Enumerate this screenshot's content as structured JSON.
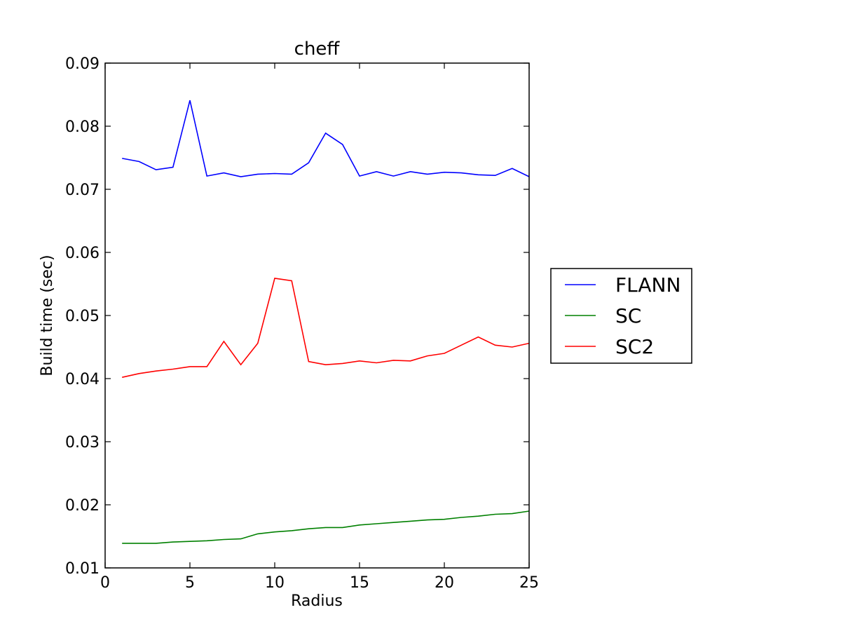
{
  "chart_data": {
    "type": "line",
    "title": "cheff",
    "xlabel": "Radius",
    "ylabel": "Build time (sec)",
    "xlim": [
      0,
      25
    ],
    "ylim": [
      0.01,
      0.09
    ],
    "xticks": [
      0,
      5,
      10,
      15,
      20,
      25
    ],
    "yticks": [
      0.01,
      0.02,
      0.03,
      0.04,
      0.05,
      0.06,
      0.07,
      0.08,
      0.09
    ],
    "xtick_labels": [
      "0",
      "5",
      "10",
      "15",
      "20",
      "25"
    ],
    "ytick_labels": [
      "0.01",
      "0.02",
      "0.03",
      "0.04",
      "0.05",
      "0.06",
      "0.07",
      "0.08",
      "0.09"
    ],
    "grid": false,
    "legend_position": "outside-right",
    "x": [
      1,
      2,
      3,
      4,
      5,
      6,
      7,
      8,
      9,
      10,
      11,
      12,
      13,
      14,
      15,
      16,
      17,
      18,
      19,
      20,
      21,
      22,
      23,
      24,
      25
    ],
    "series": [
      {
        "name": "FLANN",
        "color": "#0000ff",
        "values": [
          0.0749,
          0.0744,
          0.0731,
          0.0735,
          0.0841,
          0.0721,
          0.0726,
          0.072,
          0.0724,
          0.0725,
          0.0724,
          0.0742,
          0.0789,
          0.0771,
          0.0721,
          0.0728,
          0.0721,
          0.0728,
          0.0724,
          0.0727,
          0.0726,
          0.0723,
          0.0722,
          0.0733,
          0.072
        ]
      },
      {
        "name": "SC",
        "color": "#008000",
        "values": [
          0.0139,
          0.0139,
          0.0139,
          0.0141,
          0.0142,
          0.0143,
          0.0145,
          0.0146,
          0.0154,
          0.0157,
          0.0159,
          0.0162,
          0.0164,
          0.0164,
          0.0168,
          0.017,
          0.0172,
          0.0174,
          0.0176,
          0.0177,
          0.018,
          0.0182,
          0.0185,
          0.0186,
          0.019
        ]
      },
      {
        "name": "SC2",
        "color": "#ff0000",
        "values": [
          0.0402,
          0.0408,
          0.0412,
          0.0415,
          0.0419,
          0.0419,
          0.0459,
          0.0422,
          0.0456,
          0.0559,
          0.0555,
          0.0427,
          0.0422,
          0.0424,
          0.0428,
          0.0425,
          0.0429,
          0.0428,
          0.0436,
          0.044,
          0.0453,
          0.0466,
          0.0453,
          0.045,
          0.0456
        ]
      }
    ]
  }
}
